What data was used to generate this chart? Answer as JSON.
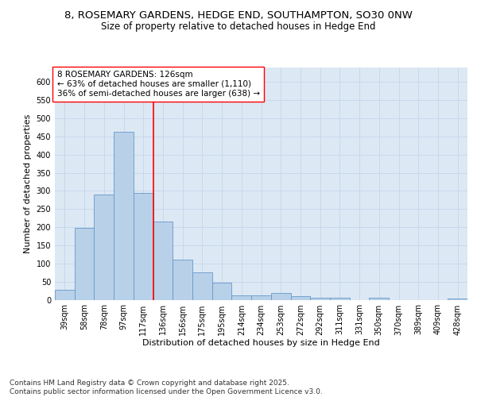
{
  "title_line1": "8, ROSEMARY GARDENS, HEDGE END, SOUTHAMPTON, SO30 0NW",
  "title_line2": "Size of property relative to detached houses in Hedge End",
  "xlabel": "Distribution of detached houses by size in Hedge End",
  "ylabel": "Number of detached properties",
  "categories": [
    "39sqm",
    "58sqm",
    "78sqm",
    "97sqm",
    "117sqm",
    "136sqm",
    "156sqm",
    "175sqm",
    "195sqm",
    "214sqm",
    "234sqm",
    "253sqm",
    "272sqm",
    "292sqm",
    "311sqm",
    "331sqm",
    "350sqm",
    "370sqm",
    "389sqm",
    "409sqm",
    "428sqm"
  ],
  "values": [
    28,
    197,
    290,
    462,
    295,
    215,
    110,
    75,
    46,
    12,
    13,
    18,
    9,
    5,
    6,
    0,
    5,
    0,
    0,
    0,
    4
  ],
  "bar_color": "#b8d0e8",
  "bar_edge_color": "#6699cc",
  "vline_x": 4.5,
  "vline_color": "red",
  "annotation_text": "8 ROSEMARY GARDENS: 126sqm\n← 63% of detached houses are smaller (1,110)\n36% of semi-detached houses are larger (638) →",
  "annotation_box_color": "white",
  "annotation_box_edge_color": "red",
  "ylim": [
    0,
    640
  ],
  "yticks": [
    0,
    50,
    100,
    150,
    200,
    250,
    300,
    350,
    400,
    450,
    500,
    550,
    600
  ],
  "grid_color": "#c8d8ec",
  "background_color": "#dce8f4",
  "footnote": "Contains HM Land Registry data © Crown copyright and database right 2025.\nContains public sector information licensed under the Open Government Licence v3.0.",
  "title_fontsize": 9.5,
  "subtitle_fontsize": 8.5,
  "axis_label_fontsize": 8,
  "tick_fontsize": 7,
  "annotation_fontsize": 7.5,
  "footnote_fontsize": 6.5
}
